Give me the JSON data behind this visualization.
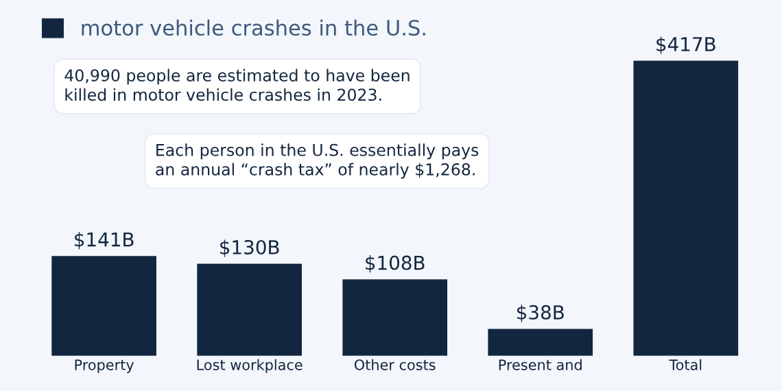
{
  "chart_data": {
    "type": "bar",
    "categories": [
      "Property",
      "Lost workplace",
      "Other costs",
      "Present and",
      "Total"
    ],
    "series": [
      {
        "name": "motor vehicle crashes in the U.S.",
        "color": "#13263f",
        "values": [
          141,
          130,
          108,
          38,
          417
        ],
        "value_labels": [
          "$141B",
          "$130B",
          "$108B",
          "$38B",
          "$417B"
        ]
      }
    ],
    "annotations": [
      {
        "text": "40,990 people are estimated to have been\nkilled in motor vehicle crashes in 2023."
      },
      {
        "text": "Each person in the U.S. essentially pays\nan annual “crash tax” of nearly $1,268."
      }
    ],
    "legend": "top left",
    "grid": false
  }
}
